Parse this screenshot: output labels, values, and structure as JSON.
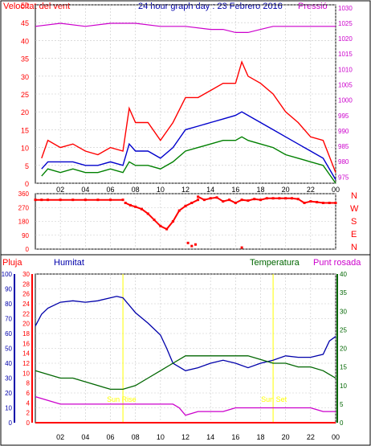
{
  "header": {
    "left": "Velocitat del vent",
    "title": "24 hour graph day : 23 Febrero 2016",
    "right": "Pressió"
  },
  "middle": {
    "dir_labels": [
      "N",
      "W",
      "S",
      "E",
      "N"
    ]
  },
  "bottom_header": {
    "pluja": "Pluja",
    "humitat": "Humitat",
    "temperatura": "Temperatura",
    "punt_rosada": "Punt rosada"
  },
  "annotations": {
    "sun_rise": "Sun Rise",
    "sun_set": "Sun Set"
  },
  "colors": {
    "wind_gust": "#ff0000",
    "wind_avg": "#0000cc",
    "wind_green": "#008000",
    "pressure": "#cc00cc",
    "direction": "#ff0000",
    "humidity": "#0000aa",
    "temperature": "#006600",
    "dewpoint": "#cc00cc",
    "rain": "#ff0000",
    "sun": "#ffff00"
  },
  "chart_data": [
    {
      "type": "line",
      "name": "wind_pressure",
      "x_ticks": [
        "02",
        "04",
        "06",
        "08",
        "10",
        "12",
        "14",
        "16",
        "18",
        "20",
        "22",
        "00"
      ],
      "y_left": {
        "ticks": [
          0,
          5,
          10,
          15,
          20,
          25,
          30,
          35,
          40,
          45,
          50
        ],
        "range": [
          0,
          50
        ]
      },
      "y_right": {
        "ticks": [
          975,
          980,
          985,
          990,
          995,
          1000,
          1005,
          1010,
          1015,
          1020,
          1025,
          1030
        ],
        "range": [
          973,
          1031
        ]
      },
      "series": [
        {
          "key": "gust",
          "x": [
            0.5,
            1,
            2,
            3,
            4,
            5,
            6,
            7,
            7.5,
            8,
            9,
            10,
            11,
            12,
            13,
            14,
            15,
            16,
            16.5,
            17,
            18,
            19,
            20,
            21,
            22,
            23,
            24
          ],
          "values": [
            7,
            12,
            10,
            11,
            9,
            8,
            10,
            9,
            21,
            17,
            17,
            12,
            17,
            24,
            24,
            26,
            28,
            28,
            34,
            30,
            28,
            25,
            20,
            17,
            13,
            12,
            3
          ]
        },
        {
          "key": "avg",
          "x": [
            0.5,
            1,
            2,
            3,
            4,
            5,
            6,
            7,
            7.5,
            8,
            9,
            10,
            11,
            12,
            13,
            14,
            15,
            16,
            16.5,
            17,
            18,
            19,
            20,
            21,
            22,
            23,
            24
          ],
          "values": [
            4,
            6,
            6,
            6,
            5,
            5,
            6,
            5,
            11,
            9,
            9,
            7,
            10,
            15,
            16,
            17,
            18,
            19,
            20,
            19,
            17,
            15,
            13,
            11,
            9,
            7,
            1
          ]
        },
        {
          "key": "green",
          "x": [
            0.5,
            1,
            2,
            3,
            4,
            5,
            6,
            7,
            7.5,
            8,
            9,
            10,
            11,
            12,
            13,
            14,
            15,
            16,
            16.5,
            17,
            18,
            19,
            20,
            21,
            22,
            23,
            24
          ],
          "values": [
            2,
            4,
            3,
            4,
            3,
            3,
            4,
            3,
            6,
            5,
            5,
            4,
            6,
            9,
            10,
            11,
            12,
            12,
            13,
            12,
            11,
            10,
            8,
            7,
            6,
            5,
            0
          ]
        },
        {
          "key": "pressure",
          "x": [
            0,
            2,
            4,
            6,
            8,
            10,
            12,
            14,
            15,
            16,
            17,
            18,
            19,
            20,
            22,
            24
          ],
          "values": [
            1024,
            1025,
            1024,
            1025,
            1025,
            1024,
            1024,
            1023,
            1023,
            1022,
            1022,
            1023,
            1024,
            1024,
            1024,
            1024
          ]
        }
      ]
    },
    {
      "type": "scatter",
      "name": "wind_direction",
      "y_ticks": [
        360,
        270,
        180,
        90,
        0
      ],
      "segments": [
        {
          "x": [
            0,
            0.5,
            1,
            2,
            3,
            4,
            5,
            6,
            7
          ],
          "values": [
            320,
            320,
            320,
            320,
            320,
            320,
            320,
            320,
            320
          ]
        },
        {
          "x": [
            7.2,
            7.6,
            8,
            8.5,
            9,
            9.5,
            10,
            10.5,
            11,
            11.5,
            12,
            12.5,
            13
          ],
          "values": [
            300,
            285,
            275,
            260,
            230,
            190,
            150,
            130,
            180,
            250,
            280,
            300,
            320
          ]
        },
        {
          "x": [
            13,
            13.5,
            14,
            14.5,
            15,
            15.5,
            16,
            16.5,
            17,
            17.5,
            18,
            18.5,
            19,
            19.5,
            20,
            20.5,
            21,
            21.5,
            22,
            22.5,
            23,
            23.5,
            24
          ],
          "values": [
            340,
            320,
            330,
            335,
            310,
            320,
            300,
            320,
            315,
            325,
            320,
            330,
            330,
            330,
            330,
            330,
            325,
            300,
            310,
            305,
            300,
            300,
            300
          ]
        }
      ],
      "outliers": {
        "x": [
          12.2,
          12.5,
          12.8,
          16.5
        ],
        "values": [
          40,
          20,
          30,
          10
        ]
      }
    },
    {
      "type": "line",
      "name": "humidity_temperature",
      "x_ticks": [
        "02",
        "04",
        "06",
        "08",
        "10",
        "12",
        "14",
        "16",
        "18",
        "20",
        "22",
        "00"
      ],
      "axes": {
        "pluja": [
          0,
          2,
          4,
          6,
          8,
          10,
          12,
          14,
          16,
          18,
          20,
          22,
          24,
          26,
          28,
          30
        ],
        "humitat": [
          0,
          10,
          20,
          30,
          40,
          50,
          60,
          70,
          80,
          90,
          100
        ],
        "temperatura": [
          0,
          5,
          10,
          15,
          20,
          25,
          30,
          35,
          40
        ]
      },
      "series": [
        {
          "key": "humidity",
          "x": [
            0,
            0.5,
            1,
            2,
            3,
            4,
            5,
            6,
            6.5,
            7,
            8,
            9,
            10,
            10.5,
            11,
            12,
            13,
            14,
            15,
            16,
            17,
            18,
            19,
            20,
            21,
            22,
            23,
            23.5,
            24
          ],
          "values": [
            65,
            73,
            77,
            81,
            82,
            81,
            82,
            84,
            85,
            84,
            74,
            67,
            59,
            50,
            40,
            35,
            37,
            40,
            42,
            40,
            37,
            40,
            42,
            45,
            44,
            44,
            46,
            55,
            58
          ]
        },
        {
          "key": "temperature",
          "x": [
            0,
            1,
            2,
            3,
            4,
            5,
            6,
            7,
            8,
            9,
            10,
            11,
            12,
            13,
            14,
            15,
            16,
            17,
            18,
            19,
            20,
            21,
            22,
            23,
            23.5,
            24
          ],
          "values": [
            14,
            13,
            12,
            12,
            11,
            10,
            9,
            9,
            10,
            12,
            14,
            16,
            18,
            18,
            18,
            18,
            18,
            18,
            17,
            16,
            16,
            15,
            15,
            14,
            13,
            12
          ]
        },
        {
          "key": "dewpoint",
          "x": [
            0,
            1,
            2,
            3,
            4,
            5,
            6,
            7,
            8,
            9,
            10,
            11,
            11.5,
            12,
            13,
            14,
            15,
            16,
            17,
            18,
            19,
            20,
            21,
            22,
            23,
            24
          ],
          "values": [
            7,
            6,
            5,
            5,
            5,
            5,
            5,
            5,
            5,
            5,
            5,
            5,
            4,
            2,
            3,
            3,
            3,
            4,
            4,
            4,
            4,
            4,
            4,
            4,
            3,
            3
          ]
        },
        {
          "key": "rain",
          "x": [
            0,
            24
          ],
          "values": [
            0,
            0
          ]
        }
      ],
      "sun_rise_x": 7,
      "sun_set_x": 19
    }
  ]
}
